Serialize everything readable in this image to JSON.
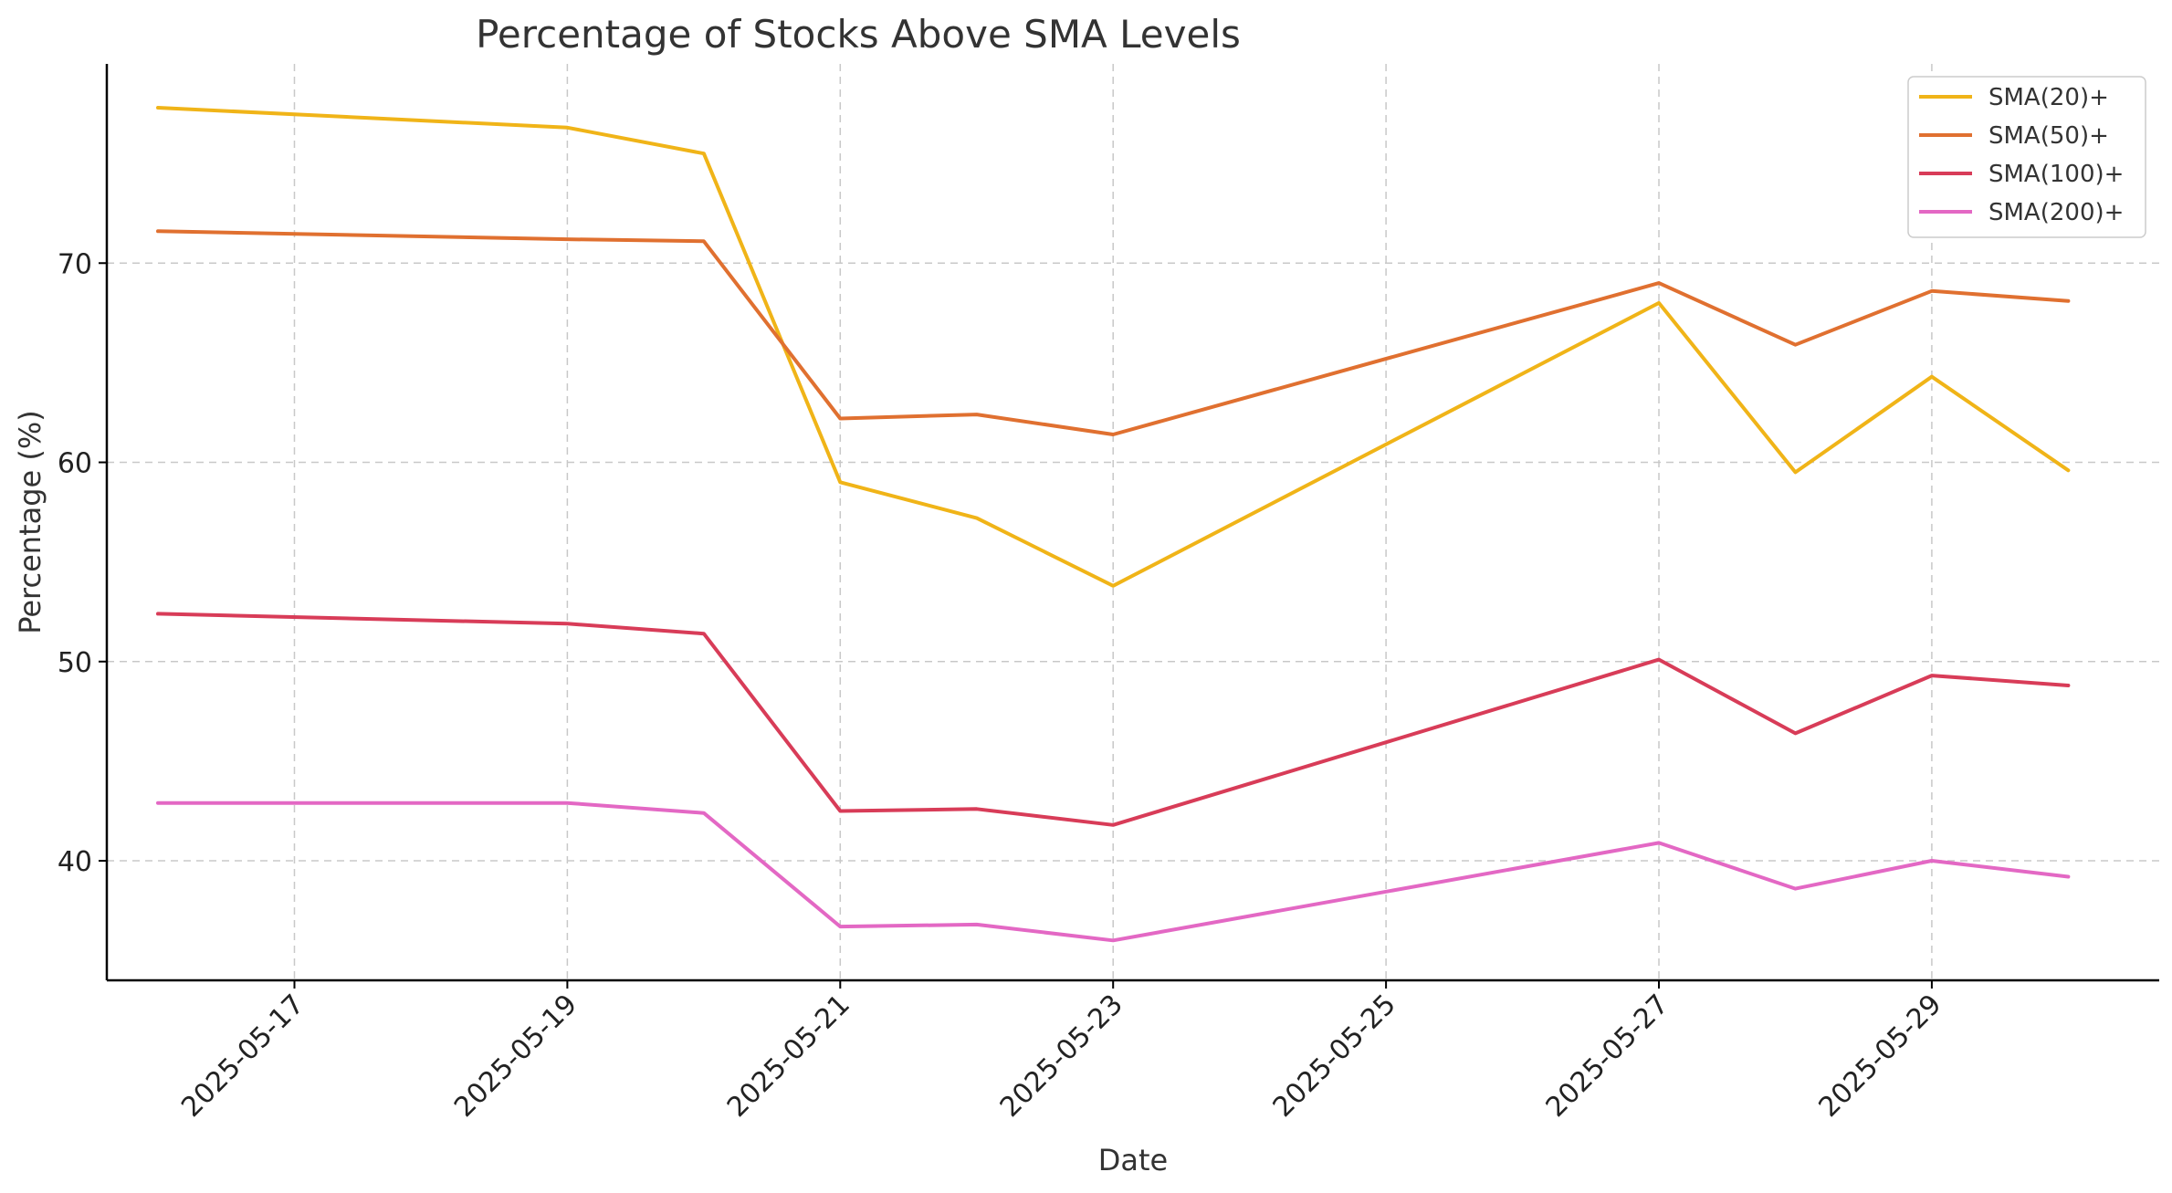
{
  "chart_data": {
    "type": "line",
    "title": "Percentage of Stocks Above SMA Levels",
    "xlabel": "Date",
    "ylabel": "Percentage (%)",
    "x": [
      "2025-05-16",
      "2025-05-19",
      "2025-05-20",
      "2025-05-21",
      "2025-05-22",
      "2025-05-23",
      "2025-05-27",
      "2025-05-28",
      "2025-05-29",
      "2025-05-30"
    ],
    "x_ticks": [
      "2025-05-17",
      "2025-05-19",
      "2025-05-21",
      "2025-05-23",
      "2025-05-25",
      "2025-05-27",
      "2025-05-29"
    ],
    "y_ticks": [
      40,
      50,
      60,
      70
    ],
    "xlim": [
      "2025-05-15T15:00",
      "2025-05-30T16:00"
    ],
    "ylim": [
      34,
      80
    ],
    "grid": true,
    "legend_position": "top-right",
    "series": [
      {
        "name": "SMA(20)+",
        "color": "#f0b418",
        "values": [
          77.8,
          76.8,
          75.5,
          59.0,
          57.2,
          53.8,
          68.0,
          59.5,
          64.3,
          59.6
        ]
      },
      {
        "name": "SMA(50)+",
        "color": "#e07030",
        "values": [
          71.6,
          71.2,
          71.1,
          62.2,
          62.4,
          61.4,
          69.0,
          65.9,
          68.6,
          68.1
        ]
      },
      {
        "name": "SMA(100)+",
        "color": "#d83c58",
        "values": [
          52.4,
          51.9,
          51.4,
          42.5,
          42.6,
          41.8,
          50.1,
          46.4,
          49.3,
          48.8
        ]
      },
      {
        "name": "SMA(200)+",
        "color": "#e368c4",
        "values": [
          42.9,
          42.9,
          42.4,
          36.7,
          36.8,
          36.0,
          40.9,
          38.6,
          40.0,
          39.2
        ]
      }
    ]
  }
}
